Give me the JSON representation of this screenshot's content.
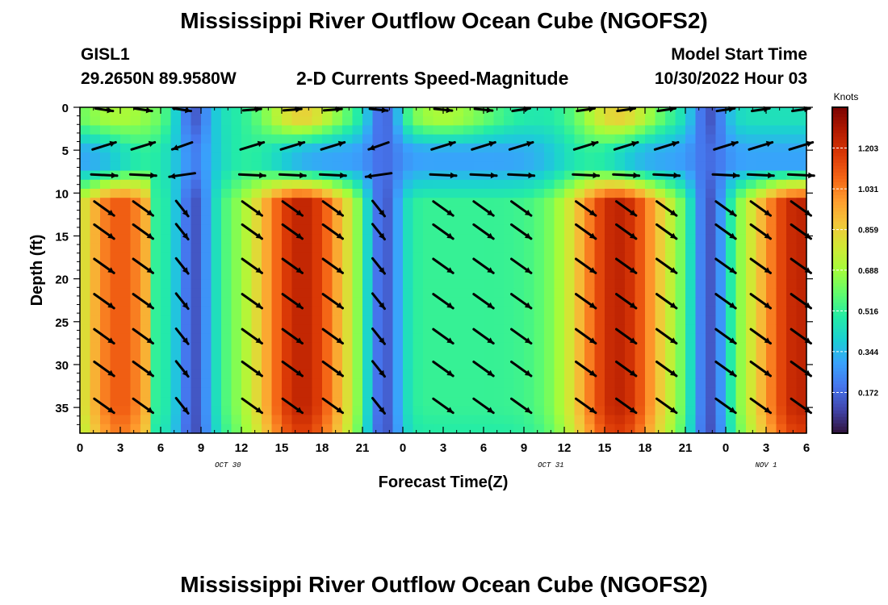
{
  "titles": {
    "main": "Mississippi River Outflow Ocean Cube (NGOFS2)",
    "repeat": "Mississippi River Outflow Ocean Cube (NGOFS2)"
  },
  "station": {
    "id": "GISL1",
    "coords": "29.2650N  89.9580W"
  },
  "subtitle": "2-D Currents Speed-Magnitude",
  "model_start": {
    "label": "Model Start Time",
    "value": "10/30/2022 Hour 03"
  },
  "chart_data": {
    "type": "heatmap",
    "xlabel": "Forecast Time(Z)",
    "ylabel": "Depth (ft)",
    "x_tick_labels": [
      "0",
      "3",
      "6",
      "9",
      "12",
      "15",
      "18",
      "21",
      "0",
      "3",
      "6",
      "9",
      "12",
      "15",
      "18",
      "21",
      "0",
      "3",
      "6"
    ],
    "x_range_hours": [
      0,
      54
    ],
    "date_labels": [
      {
        "text": "OCT 30",
        "hour": 11
      },
      {
        "text": "OCT 31",
        "hour": 35
      },
      {
        "text": "NOV 1",
        "hour": 51
      }
    ],
    "y_ticks": [
      0,
      5,
      10,
      15,
      20,
      25,
      30,
      35
    ],
    "y_range_ft": [
      0,
      38
    ],
    "colorbar": {
      "label": "Knots",
      "ticks": [
        1.203,
        1.031,
        0.859,
        0.688,
        0.516,
        0.344,
        0.172
      ],
      "tick_labels": [
        "1.203",
        "1.031",
        "0.859",
        "0.688",
        "0.516",
        "0.344",
        "0.172"
      ],
      "range": [
        0,
        1.375
      ],
      "colormap": [
        "#30123b",
        "#4145ab",
        "#4675ed",
        "#39a2fc",
        "#1bcfd4",
        "#24eca6",
        "#61fc6c",
        "#a4fc3b",
        "#d1e834",
        "#f3c63a",
        "#fe9b2d",
        "#f36315",
        "#d93806",
        "#b11901",
        "#7a0402"
      ]
    },
    "arrow_color": "#000000"
  }
}
